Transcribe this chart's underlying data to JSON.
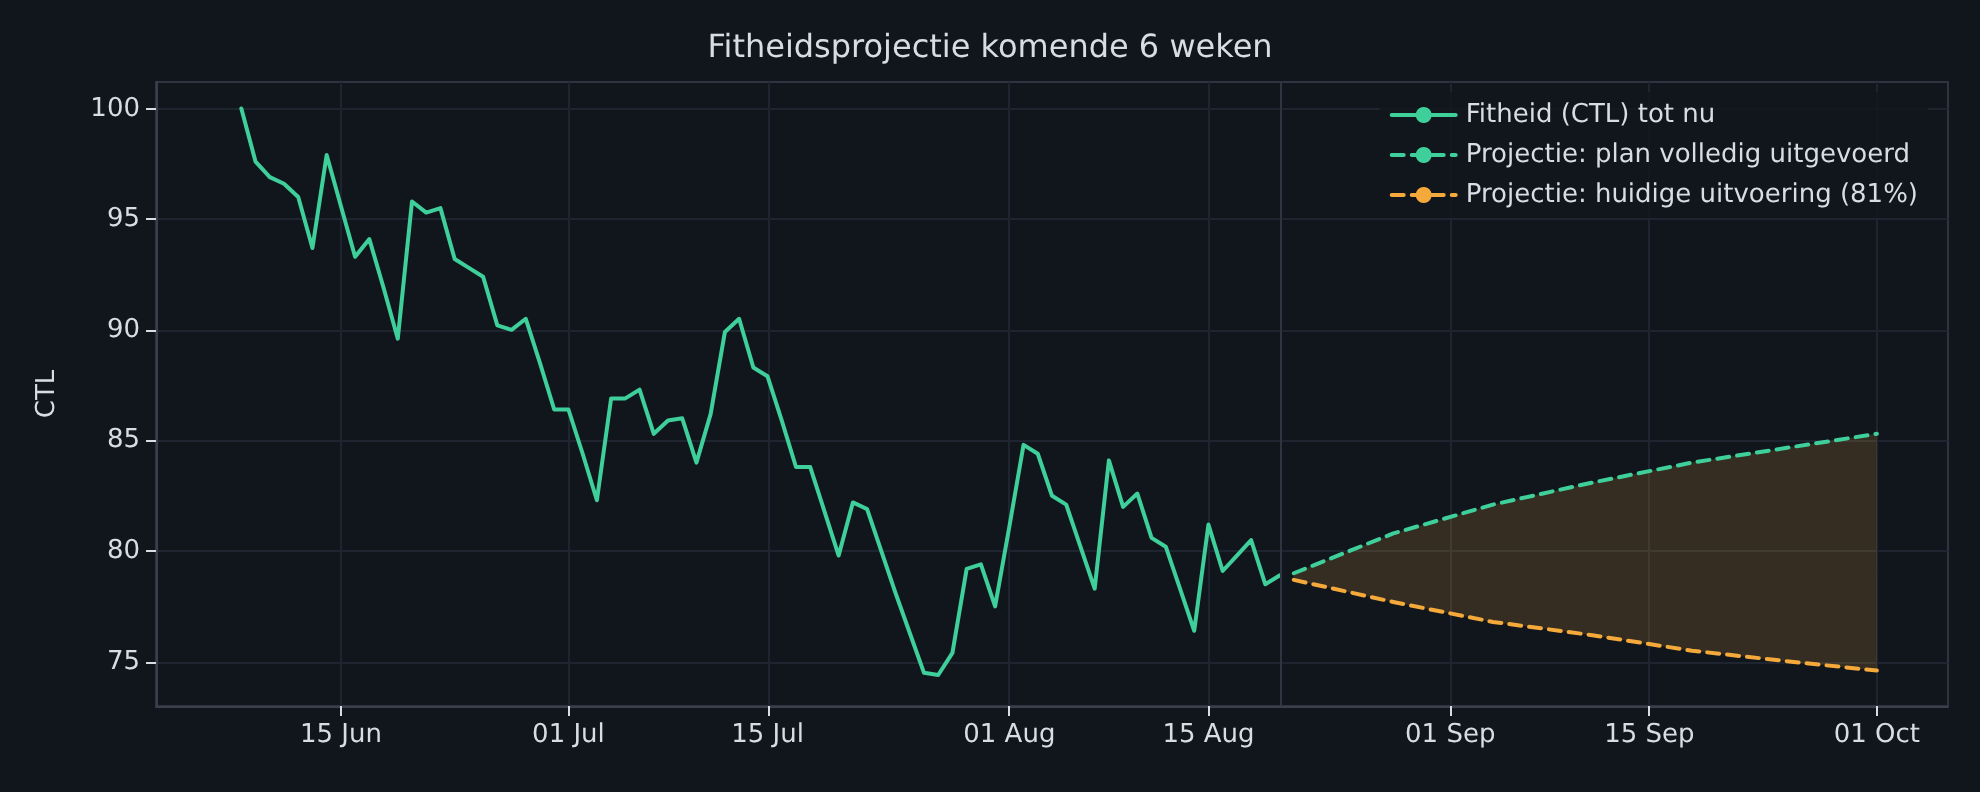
{
  "chart_data": {
    "type": "line",
    "title": "Fitheidsprojectie komende 6 weken",
    "ylabel": "CTL",
    "xlim": [
      "--06-02",
      "--10-06"
    ],
    "xticks": [
      {
        "value": "--06-15",
        "label": "15 Jun"
      },
      {
        "value": "--07-01",
        "label": "01 Jul"
      },
      {
        "value": "--07-15",
        "label": "15 Jul"
      },
      {
        "value": "--08-01",
        "label": "01 Aug"
      },
      {
        "value": "--08-15",
        "label": "15 Aug"
      },
      {
        "value": "--09-01",
        "label": "01 Sep"
      },
      {
        "value": "--09-15",
        "label": "15 Sep"
      },
      {
        "value": "--10-01",
        "label": "01 Oct"
      }
    ],
    "ylim": [
      73,
      101.2
    ],
    "yticks": [
      75,
      80,
      85,
      90,
      95,
      100
    ],
    "grid": true,
    "legend": "top right",
    "marker": "none",
    "ref_lines": [
      {
        "axis": "x",
        "value": "--08-20",
        "color": "#2e3440"
      }
    ],
    "series": [
      {
        "name": "Fitheid (CTL) tot nu",
        "color": "#3ecf9a",
        "line_style": "solid",
        "x": [
          "--06-08",
          "--06-09",
          "--06-10",
          "--06-11",
          "--06-12",
          "--06-13",
          "--06-14",
          "--06-15",
          "--06-16",
          "--06-17",
          "--06-18",
          "--06-19",
          "--06-20",
          "--06-21",
          "--06-22",
          "--06-23",
          "--06-24",
          "--06-25",
          "--06-26",
          "--06-27",
          "--06-28",
          "--06-29",
          "--06-30",
          "--07-01",
          "--07-02",
          "--07-03",
          "--07-04",
          "--07-05",
          "--07-06",
          "--07-07",
          "--07-08",
          "--07-09",
          "--07-10",
          "--07-11",
          "--07-12",
          "--07-13",
          "--07-14",
          "--07-15",
          "--07-16",
          "--07-17",
          "--07-18",
          "--07-19",
          "--07-20",
          "--07-21",
          "--07-22",
          "--07-23",
          "--07-24",
          "--07-25",
          "--07-26",
          "--07-27",
          "--07-28",
          "--07-29",
          "--07-30",
          "--07-31",
          "--08-01",
          "--08-02",
          "--08-03",
          "--08-04",
          "--08-05",
          "--08-06",
          "--08-07",
          "--08-08",
          "--08-09",
          "--08-10",
          "--08-11",
          "--08-12",
          "--08-13",
          "--08-14",
          "--08-15",
          "--08-16",
          "--08-17",
          "--08-18",
          "--08-19",
          "--08-20"
        ],
        "values": [
          100.0,
          97.6,
          96.9,
          96.6,
          96.0,
          93.7,
          97.9,
          95.6,
          93.3,
          94.1,
          91.9,
          89.6,
          95.8,
          95.3,
          95.5,
          93.2,
          92.8,
          92.4,
          90.2,
          90.0,
          90.5,
          88.5,
          86.4,
          86.4,
          84.4,
          82.3,
          86.9,
          86.9,
          87.3,
          85.3,
          85.9,
          86.0,
          84.0,
          86.2,
          89.9,
          90.5,
          88.3,
          87.9,
          85.9,
          83.8,
          83.8,
          81.8,
          79.8,
          82.2,
          81.9,
          80.0,
          78.1,
          76.3,
          74.5,
          74.4,
          75.4,
          79.2,
          79.4,
          77.5,
          81.1,
          84.8,
          84.4,
          82.5,
          82.1,
          80.2,
          78.3,
          84.1,
          82.0,
          82.6,
          80.6,
          80.2,
          78.3,
          76.4,
          81.2,
          79.1,
          79.8,
          80.5,
          78.5,
          78.9
        ]
      },
      {
        "name": "Projectie: plan volledig uitgevoerd",
        "color": "#3ecf9a",
        "line_style": "dashed",
        "x": [
          "--08-21",
          "--08-28",
          "--09-04",
          "--09-11",
          "--09-18",
          "--09-25",
          "--10-01"
        ],
        "values": [
          79.0,
          80.8,
          82.1,
          83.1,
          84.0,
          84.7,
          85.3
        ]
      },
      {
        "name": "Projectie: huidige uitvoering (81%)",
        "color": "#f5a93a",
        "line_style": "dashed",
        "x": [
          "--08-21",
          "--08-28",
          "--09-04",
          "--09-11",
          "--09-18",
          "--09-25",
          "--10-01"
        ],
        "values": [
          78.7,
          77.7,
          76.8,
          76.2,
          75.5,
          75.0,
          74.6
        ],
        "lower": [
          78.7,
          77.7,
          76.8,
          76.2,
          75.5,
          75.0,
          74.6
        ],
        "upper": [
          79.0,
          80.8,
          82.1,
          83.1,
          84.0,
          84.7,
          85.3
        ]
      }
    ]
  }
}
